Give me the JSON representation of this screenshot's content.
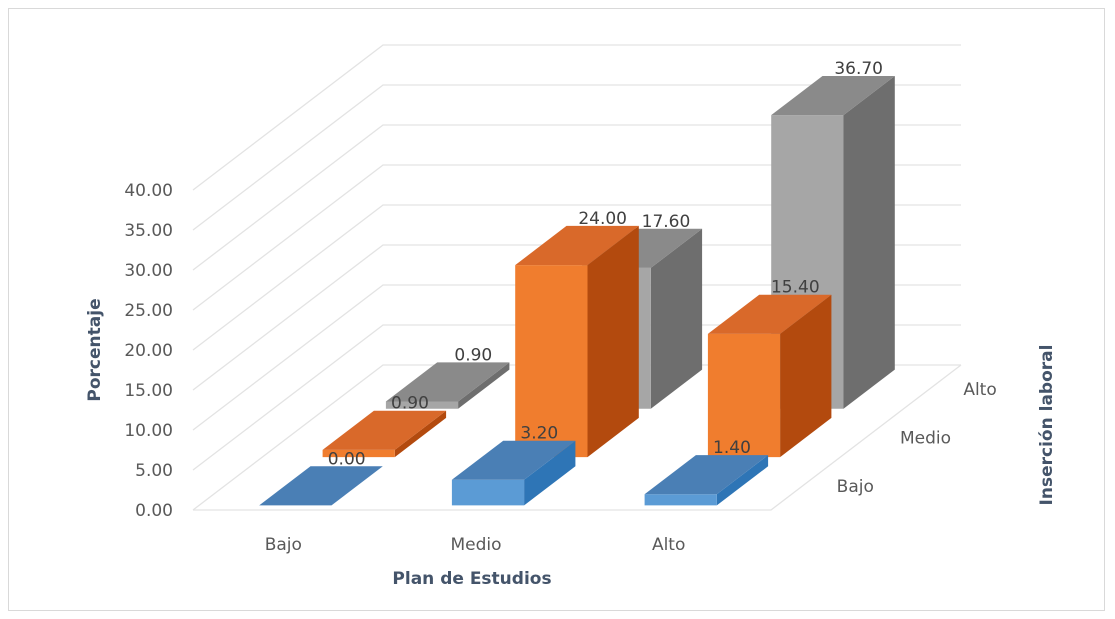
{
  "chart_data": {
    "type": "bar",
    "title": "",
    "xlabel": "Plan de Estudios",
    "ylabel": "Porcentaje",
    "zlabel": "Inserción laboral",
    "categories": [
      "Bajo",
      "Medio",
      "Alto"
    ],
    "y_ticks": [
      "0.00",
      "5.00",
      "10.00",
      "15.00",
      "20.00",
      "25.00",
      "30.00",
      "35.00",
      "40.00"
    ],
    "ylim": [
      0,
      40
    ],
    "series": [
      {
        "name": "Bajo",
        "values": [
          0.0,
          3.2,
          1.4
        ],
        "labels": [
          "0.00",
          "3.20",
          "1.40"
        ]
      },
      {
        "name": "Medio",
        "values": [
          0.9,
          24.0,
          15.4
        ],
        "labels": [
          "0.90",
          "24.00",
          "15.40"
        ]
      },
      {
        "name": "Alto",
        "values": [
          0.9,
          17.6,
          36.7
        ],
        "labels": [
          "0.90",
          "17.60",
          "36.70"
        ]
      }
    ],
    "colors": {
      "Bajo": [
        "#5b9bd5",
        "#2e75b6",
        "#4a7fb5"
      ],
      "Medio": [
        "#f07d2e",
        "#b34a0e",
        "#d9692a"
      ],
      "Alto": [
        "#a6a6a6",
        "#6e6e6e",
        "#8a8a8a"
      ]
    },
    "grid": true,
    "projection": "3d-column"
  }
}
